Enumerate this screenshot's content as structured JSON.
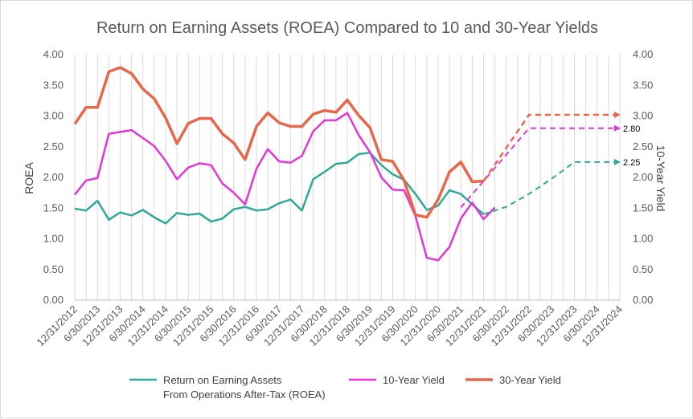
{
  "chart_data": {
    "type": "line",
    "title": "Return on Earning Assets (ROEA) Compared to 10 and 30-Year Yields",
    "ylabel_left": "ROEA",
    "ylabel_right": "10-Year Yield",
    "ylim": [
      0,
      4
    ],
    "yticks": [
      "0.00",
      "0.50",
      "1.00",
      "1.50",
      "2.00",
      "2.50",
      "3.00",
      "3.50",
      "4.00"
    ],
    "x_tick_labels": [
      "12/31/2012",
      "6/30/2013",
      "12/31/2013",
      "6/30/2014",
      "12/31/2014",
      "6/30/2015",
      "12/31/2015",
      "6/30/2016",
      "12/31/2016",
      "6/30/2017",
      "12/31/2017",
      "6/30/2018",
      "12/31/2018",
      "6/30/2019",
      "12/31/2019",
      "6/30/2020",
      "12/31/2020",
      "6/30/2021",
      "12/31/2021",
      "6/30/2022",
      "12/31/2022",
      "6/30/2023",
      "12/31/2023",
      "6/30/2024",
      "12/31/2024"
    ],
    "x_start": "12/31/2012",
    "x_step": "quarter",
    "grid": "vertical",
    "legend_position": "bottom",
    "series": [
      {
        "name": "Return on Earning Assets From Operations After-Tax (ROEA)",
        "legend_lines": [
          "Return on Earning Assets",
          "From Operations After-Tax (ROEA)"
        ],
        "color": "#2EAA96",
        "values": [
          1.49,
          1.46,
          1.62,
          1.31,
          1.43,
          1.38,
          1.47,
          1.35,
          1.25,
          1.42,
          1.39,
          1.41,
          1.28,
          1.33,
          1.48,
          1.52,
          1.46,
          1.48,
          1.58,
          1.64,
          1.46,
          1.97,
          2.09,
          2.22,
          2.24,
          2.38,
          2.4,
          2.2,
          2.05,
          1.96,
          1.73,
          1.47,
          1.54,
          1.79,
          1.73,
          1.56,
          1.4
        ],
        "forecast": [
          {
            "x": "12/31/2021",
            "y": 1.4
          },
          {
            "x": "6/30/2022",
            "y": 1.52
          },
          {
            "x": "12/31/2022",
            "y": 1.73
          },
          {
            "x": "6/30/2023",
            "y": 1.98
          },
          {
            "x": "12/31/2023",
            "y": 2.25
          },
          {
            "x": "12/31/2024",
            "y": 2.25
          }
        ],
        "end_label": "2.25"
      },
      {
        "name": "10-Year Yield",
        "color": "#E535D9",
        "values": [
          1.72,
          1.95,
          1.99,
          2.71,
          2.74,
          2.77,
          2.64,
          2.51,
          2.27,
          1.97,
          2.16,
          2.23,
          2.2,
          1.9,
          1.75,
          1.56,
          2.14,
          2.46,
          2.26,
          2.24,
          2.35,
          2.75,
          2.93,
          2.93,
          3.05,
          2.69,
          2.41,
          2.0,
          1.8,
          1.79,
          1.37,
          0.69,
          0.65,
          0.87,
          1.33,
          1.59,
          1.32,
          1.51
        ],
        "forecast": [
          {
            "x": "6/30/2021",
            "y": 1.51
          },
          {
            "x": "12/31/2022",
            "y": 2.8
          },
          {
            "x": "12/31/2024",
            "y": 2.8
          }
        ],
        "end_label": "2.80"
      },
      {
        "name": "30-Year Yield",
        "color": "#E8674A",
        "values": [
          2.87,
          3.14,
          3.14,
          3.72,
          3.79,
          3.69,
          3.44,
          3.28,
          2.97,
          2.55,
          2.88,
          2.96,
          2.96,
          2.71,
          2.56,
          2.29,
          2.83,
          3.05,
          2.89,
          2.83,
          2.83,
          3.03,
          3.09,
          3.06,
          3.26,
          3.01,
          2.81,
          2.29,
          2.26,
          1.95,
          1.39,
          1.35,
          1.64,
          2.09,
          2.25,
          1.93,
          1.94
        ],
        "forecast": [
          {
            "x": "12/31/2021",
            "y": 1.94
          },
          {
            "x": "12/31/2022",
            "y": 3.02
          },
          {
            "x": "12/31/2024",
            "y": 3.02
          }
        ],
        "end_label": ""
      }
    ]
  }
}
